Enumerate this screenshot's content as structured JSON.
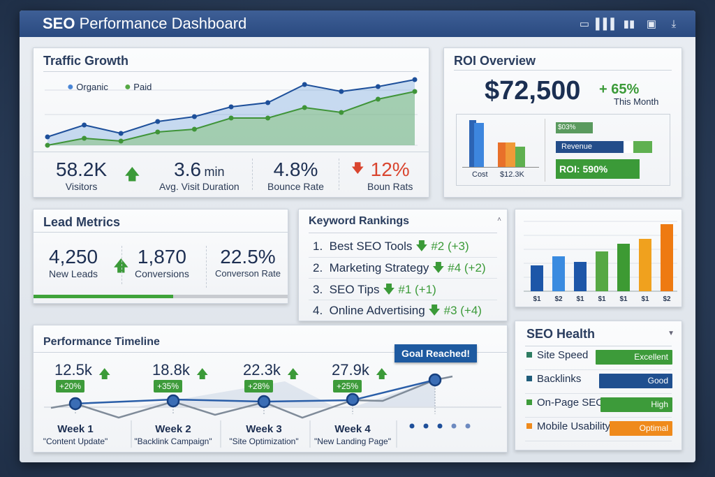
{
  "header": {
    "title_bold": "SEO",
    "title_rest": " Performance Dashboard",
    "icons": [
      "monitor-icon",
      "bar-chart-icon",
      "columns-icon",
      "calendar-icon",
      "download-icon"
    ]
  },
  "colors": {
    "navy": "#1d3f78",
    "blue": "#2f6fc0",
    "green": "#3b9a38",
    "orange": "#ee8a22",
    "red": "#d9452f"
  },
  "traffic": {
    "title": "Traffic Growth",
    "legend": [
      {
        "name": "Organic",
        "color": "#4a86d6"
      },
      {
        "name": "Paid",
        "color": "#55a844"
      }
    ],
    "stats": [
      {
        "value": "58.2K",
        "label": "Visitors",
        "trend": "up"
      },
      {
        "value": "3.6",
        "unit": "min",
        "label": "Avg. Visit Duration"
      },
      {
        "value": "4.8%",
        "label": "Bounce Rate"
      },
      {
        "value": "12%",
        "label": "Boun Rats",
        "trend": "down"
      }
    ]
  },
  "chart_data": [
    {
      "type": "area",
      "series": [
        {
          "name": "Organic",
          "values": [
            12,
            29,
            17,
            34,
            41,
            55,
            61,
            87,
            77,
            84,
            94
          ]
        },
        {
          "name": "Paid",
          "values": [
            0,
            10,
            6,
            19,
            23,
            39,
            39,
            54,
            47,
            66,
            77
          ]
        }
      ],
      "grid": true,
      "legend": "top-left"
    },
    {
      "type": "bar",
      "categories": [
        "$1",
        "$2",
        "$1",
        "$1",
        "$1",
        "$1",
        "$2"
      ],
      "values": [
        37,
        50,
        42,
        57,
        68,
        75,
        96
      ],
      "colors": [
        "#1d56a8",
        "#3a8be0",
        "#1d56a8",
        "#56a844",
        "#3d9a33",
        "#f0a11e",
        "#ee7a12"
      ],
      "grid": true
    }
  ],
  "roi": {
    "title": "ROI Overview",
    "amount": "$72,500",
    "change": "+ 65%",
    "period": "This Month",
    "cost_label": "Cost",
    "cost_value": "$12.3K",
    "bar1_label": "$03%",
    "revenue_label": "Revenue",
    "roi_label": "ROI: 590%"
  },
  "leads": {
    "title": "Lead Metrics",
    "progress": 0.55,
    "stats": [
      {
        "value": "4,250",
        "label": "New Leads"
      },
      {
        "value": "1,870",
        "label": "Conversions"
      },
      {
        "value": "22.5%",
        "label": "Converson Rate"
      }
    ]
  },
  "keywords": {
    "title": "Keyword Rankings",
    "items": [
      {
        "num": "1.",
        "name": "Best SEO Tools",
        "change": "#2 (+3)"
      },
      {
        "num": "2.",
        "name": "Marketing Strategy",
        "change": "#4 (+2)"
      },
      {
        "num": "3.",
        "name": "SEO Tips",
        "change": "#1 (+1)"
      },
      {
        "num": "4.",
        "name": "Online Advertising",
        "change": "#3 (+4)"
      }
    ]
  },
  "timeline": {
    "title": "Performance Timeline",
    "goal": "Goal Reached!",
    "weeks": [
      {
        "value": "12.5k",
        "pct": "+20%",
        "week": "Week 1",
        "desc": "\"Content Update\""
      },
      {
        "value": "18.8k",
        "pct": "+35%",
        "week": "Week 2",
        "desc": "\"Backlink Campaign\""
      },
      {
        "value": "22.3k",
        "pct": "+28%",
        "week": "Week 3",
        "desc": "\"Site Optimization\""
      },
      {
        "value": "27.9k",
        "pct": "+25%",
        "week": "Week 4",
        "desc": "\"New Landing Page\""
      }
    ]
  },
  "health": {
    "title": "SEO Health",
    "items": [
      {
        "name": "Site Speed",
        "status": "Excellent",
        "color": "#3d9b3a",
        "sq": "#2e7d62"
      },
      {
        "name": "Backlinks",
        "status": "Good",
        "color": "#1f4f8f",
        "sq": "#1f5c7a"
      },
      {
        "name": "On-Page SEO",
        "status": "High",
        "color": "#3d9b3a",
        "sq": "#3d9b3a"
      },
      {
        "name": "Mobile Usability",
        "status": "Optimal",
        "color": "#ef8a1c",
        "sq": "#ef8a1c"
      }
    ]
  }
}
